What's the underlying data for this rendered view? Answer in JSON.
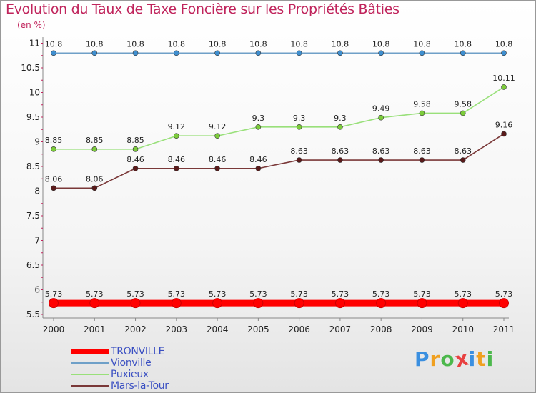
{
  "chart_data": {
    "type": "line",
    "title": "Evolution du Taux de Taxe Foncière sur les Propriétés Bâties",
    "ylabel": "(en %)",
    "xlabel": "",
    "ylim": [
      5.5,
      11
    ],
    "yticks": [
      "5.5",
      "6",
      "6.5",
      "7",
      "7.5",
      "8",
      "8.5",
      "9",
      "9.5",
      "10",
      "10.5",
      "11"
    ],
    "categories": [
      "2000",
      "2001",
      "2002",
      "2003",
      "2004",
      "2005",
      "2006",
      "2007",
      "2008",
      "2009",
      "2010",
      "2011"
    ],
    "series": [
      {
        "name": "TRONVILLE",
        "color": "#ff0000",
        "values": [
          5.73,
          5.73,
          5.73,
          5.73,
          5.73,
          5.73,
          5.73,
          5.73,
          5.73,
          5.73,
          5.73,
          5.73
        ],
        "labels": [
          "5.73",
          "5.73",
          "5.73",
          "5.73",
          "5.73",
          "5.73",
          "5.73",
          "5.73",
          "5.73",
          "5.73",
          "5.73",
          "5.73"
        ]
      },
      {
        "name": "Vionville",
        "color": "#6fa0c8",
        "marker": "#3f8fd0",
        "values": [
          10.8,
          10.8,
          10.8,
          10.8,
          10.8,
          10.8,
          10.8,
          10.8,
          10.8,
          10.8,
          10.8,
          10.8
        ],
        "labels": [
          "10.8",
          "10.8",
          "10.8",
          "10.8",
          "10.8",
          "10.8",
          "10.8",
          "10.8",
          "10.8",
          "10.8",
          "10.8",
          "10.8"
        ]
      },
      {
        "name": "Puxieux",
        "color": "#99e07a",
        "marker": "#7ccc3a",
        "values": [
          8.85,
          8.85,
          8.85,
          9.12,
          9.12,
          9.3,
          9.3,
          9.3,
          9.49,
          9.58,
          9.58,
          10.11
        ],
        "labels": [
          "8.85",
          "8.85",
          "8.85",
          "9.12",
          "9.12",
          "9.3",
          "9.3",
          "9.3",
          "9.49",
          "9.58",
          "9.58",
          "10.11"
        ]
      },
      {
        "name": "Mars-la-Tour",
        "color": "#7a3838",
        "marker": "#5a1a1a",
        "values": [
          8.06,
          8.06,
          8.46,
          8.46,
          8.46,
          8.46,
          8.63,
          8.63,
          8.63,
          8.63,
          8.63,
          9.16
        ],
        "labels": [
          "8.06",
          "8.06",
          "8.46",
          "8.46",
          "8.46",
          "8.46",
          "8.63",
          "8.63",
          "8.63",
          "8.63",
          "8.63",
          "9.16"
        ]
      }
    ],
    "legend_position": "bottom-left"
  },
  "brand": {
    "letters": [
      "P",
      "r",
      "o",
      "x",
      "i",
      "t",
      "i"
    ],
    "colors": [
      "#3a8fe0",
      "#f0a020",
      "#4cb84c",
      "#e84040",
      "#3a8fe0",
      "#f0a020",
      "#4cb84c"
    ]
  }
}
